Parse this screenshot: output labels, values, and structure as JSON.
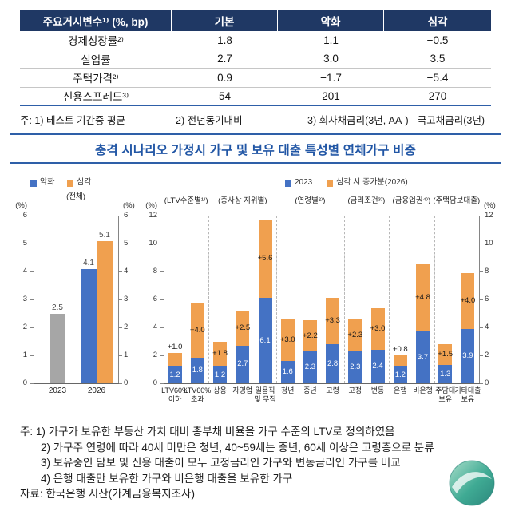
{
  "table": {
    "header": {
      "label": "주요거시변수¹⁾ (%, bp)",
      "columns": [
        "기본",
        "악화",
        "심각"
      ]
    },
    "rows": [
      {
        "label": "경제성장률²⁾",
        "values": [
          "1.8",
          "1.1",
          "−0.5"
        ]
      },
      {
        "label": "실업률",
        "values": [
          "2.7",
          "3.0",
          "3.5"
        ]
      },
      {
        "label": "주택가격²⁾",
        "values": [
          "0.9",
          "−1.7",
          "−5.4"
        ]
      },
      {
        "label": "신용스프레드³⁾",
        "values": [
          "54",
          "201",
          "270"
        ]
      }
    ],
    "notes": [
      "주: 1) 테스트 기간중 평균",
      "2) 전년동기대비",
      "3) 회사채금리(3년, AA-) - 국고채금리(3년)"
    ]
  },
  "section_title": "충격 시나리오 가정시 가구 및 보유 대출 특성별 연체가구 비중",
  "chart_data": [
    {
      "type": "bar",
      "title": "(전체)",
      "axis_unit": "(%)",
      "ylim": [
        0,
        6
      ],
      "yticks": [
        0,
        1,
        2,
        3,
        4,
        5,
        6
      ],
      "legend": [
        {
          "label": "악화",
          "color": "#4472C4"
        },
        {
          "label": "심각",
          "color": "#F0A04F"
        }
      ],
      "x_labels": [
        "2023",
        "2026"
      ],
      "bars": [
        {
          "group": "2023",
          "series": "2023",
          "value": 2.5,
          "value_label": "2.5",
          "color": "#A6A6A6"
        },
        {
          "group": "2026",
          "series": "악화",
          "value": 4.1,
          "value_label": "4.1",
          "color": "#4472C4"
        },
        {
          "group": "2026",
          "series": "심각",
          "value": 5.1,
          "value_label": "5.1",
          "color": "#F0A04F"
        }
      ]
    },
    {
      "type": "stacked_bar",
      "axis_unit": "(%)",
      "ylim": [
        0,
        12
      ],
      "yticks": [
        0,
        2,
        4,
        6,
        8,
        10,
        12
      ],
      "legend": [
        {
          "label": "2023",
          "color": "#4472C4"
        },
        {
          "label": "심각 시 증가분(2026)",
          "color": "#F0A04F"
        }
      ],
      "groups": [
        {
          "name": "(LTV수준별¹⁾)",
          "bars": [
            {
              "label": "LTV60%\n이하",
              "base": 1.2,
              "increase": 1.0,
              "base_label": "1.2",
              "increase_label": "+1.0"
            },
            {
              "label": "LTV60%\n초과",
              "base": 1.8,
              "increase": 4.0,
              "base_label": "1.8",
              "increase_label": "+4.0"
            }
          ]
        },
        {
          "name": "(종사상 지위별)",
          "bars": [
            {
              "label": "상용",
              "base": 1.2,
              "increase": 1.8,
              "base_label": "1.2",
              "increase_label": "+1.8"
            },
            {
              "label": "자영업",
              "base": 2.7,
              "increase": 2.5,
              "base_label": "2.7",
              "increase_label": "+2.5"
            },
            {
              "label": "일용직\n및 무직",
              "base": 6.1,
              "increase": 5.6,
              "base_label": "6.1",
              "increase_label": "+5.6"
            }
          ]
        },
        {
          "name": "(연령별²⁾)",
          "bars": [
            {
              "label": "청년",
              "base": 1.6,
              "increase": 3.0,
              "base_label": "1.6",
              "increase_label": "+3.0"
            },
            {
              "label": "중년",
              "base": 2.3,
              "increase": 2.2,
              "base_label": "2.3",
              "increase_label": "+2.2"
            },
            {
              "label": "고령",
              "base": 2.8,
              "increase": 3.3,
              "base_label": "2.8",
              "increase_label": "+3.3"
            }
          ]
        },
        {
          "name": "(금리조건³⁾)",
          "bars": [
            {
              "label": "고정",
              "base": 2.3,
              "increase": 2.3,
              "base_label": "2.3",
              "increase_label": "+2.3"
            },
            {
              "label": "변동",
              "base": 2.4,
              "increase": 3.0,
              "base_label": "2.4",
              "increase_label": "+3.0"
            }
          ]
        },
        {
          "name": "(금융업권⁴⁾)",
          "bars": [
            {
              "label": "은행",
              "base": 1.2,
              "increase": 0.8,
              "base_label": "1.2",
              "increase_label": "+0.8"
            },
            {
              "label": "비은행",
              "base": 3.7,
              "increase": 4.8,
              "base_label": "3.7",
              "increase_label": "+4.8"
            }
          ]
        },
        {
          "name": "(주택담보대출)",
          "bars": [
            {
              "label": "주담대\n보유",
              "base": 1.3,
              "increase": 1.5,
              "base_label": "1.3",
              "increase_label": "+1.5"
            },
            {
              "label": "기타대출\n보유",
              "base": 3.9,
              "increase": 4.0,
              "base_label": "3.9",
              "increase_label": "+4.0"
            }
          ]
        }
      ]
    }
  ],
  "footnotes": {
    "lines": [
      "주: 1) 가구가 보유한 부동산 가치 대비 총부채 비율을 가구 수준의 LTV로 정의하였음",
      "2) 가구주 연령에 따라 40세 미만은 청년, 40~59세는 중년, 60세 이상은 고령층으로 분류",
      "3) 보유중인 담보 및 신용 대출이 모두 고정금리인 가구와 변동금리인 가구를 비교",
      "4) 은행 대출만 보유한 가구와 비은행 대출을 보유한 가구"
    ],
    "source": "자료: 한국은행 시산(가계금융복지조사)"
  },
  "watermark": {
    "shape": "circle-logo",
    "colors": [
      "#9ED9C3",
      "#2AA188",
      "#157A6E"
    ]
  }
}
